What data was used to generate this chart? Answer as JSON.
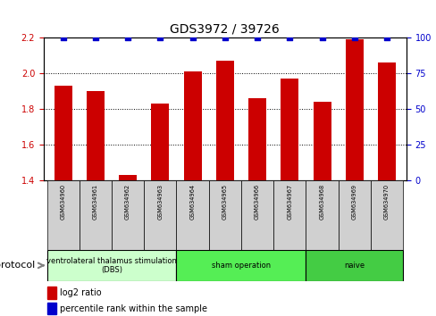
{
  "title": "GDS3972 / 39726",
  "samples": [
    "GSM634960",
    "GSM634961",
    "GSM634962",
    "GSM634963",
    "GSM634964",
    "GSM634965",
    "GSM634966",
    "GSM634967",
    "GSM634968",
    "GSM634969",
    "GSM634970"
  ],
  "log2_ratio": [
    1.93,
    1.9,
    1.43,
    1.83,
    2.01,
    2.07,
    1.86,
    1.97,
    1.84,
    2.19,
    2.06
  ],
  "percentile_rank": [
    100,
    100,
    100,
    100,
    100,
    100,
    100,
    100,
    100,
    100,
    100
  ],
  "bar_color": "#cc0000",
  "dot_color": "#0000cc",
  "ylim_left": [
    1.4,
    2.2
  ],
  "ylim_right": [
    0,
    100
  ],
  "yticks_left": [
    1.4,
    1.6,
    1.8,
    2.0,
    2.2
  ],
  "yticks_right": [
    0,
    25,
    50,
    75,
    100
  ],
  "groups": [
    {
      "label": "ventrolateral thalamus stimulation\n(DBS)",
      "start": 0,
      "end": 3,
      "color": "#ccffcc"
    },
    {
      "label": "sham operation",
      "start": 4,
      "end": 7,
      "color": "#55ee55"
    },
    {
      "label": "naive",
      "start": 8,
      "end": 10,
      "color": "#44cc44"
    }
  ],
  "protocol_label": "protocol",
  "legend_items": [
    {
      "color": "#cc0000",
      "label": "log2 ratio"
    },
    {
      "color": "#0000cc",
      "label": "percentile rank within the sample"
    }
  ],
  "bar_width": 0.55,
  "dot_marker": "s",
  "bg_color": "#ffffff",
  "ticklabel_box_color": "#d0d0d0",
  "grid_color": "#000000",
  "title_fontsize": 10,
  "tick_fontsize": 6,
  "axis_label_color_left": "#cc0000",
  "axis_label_color_right": "#0000cc"
}
